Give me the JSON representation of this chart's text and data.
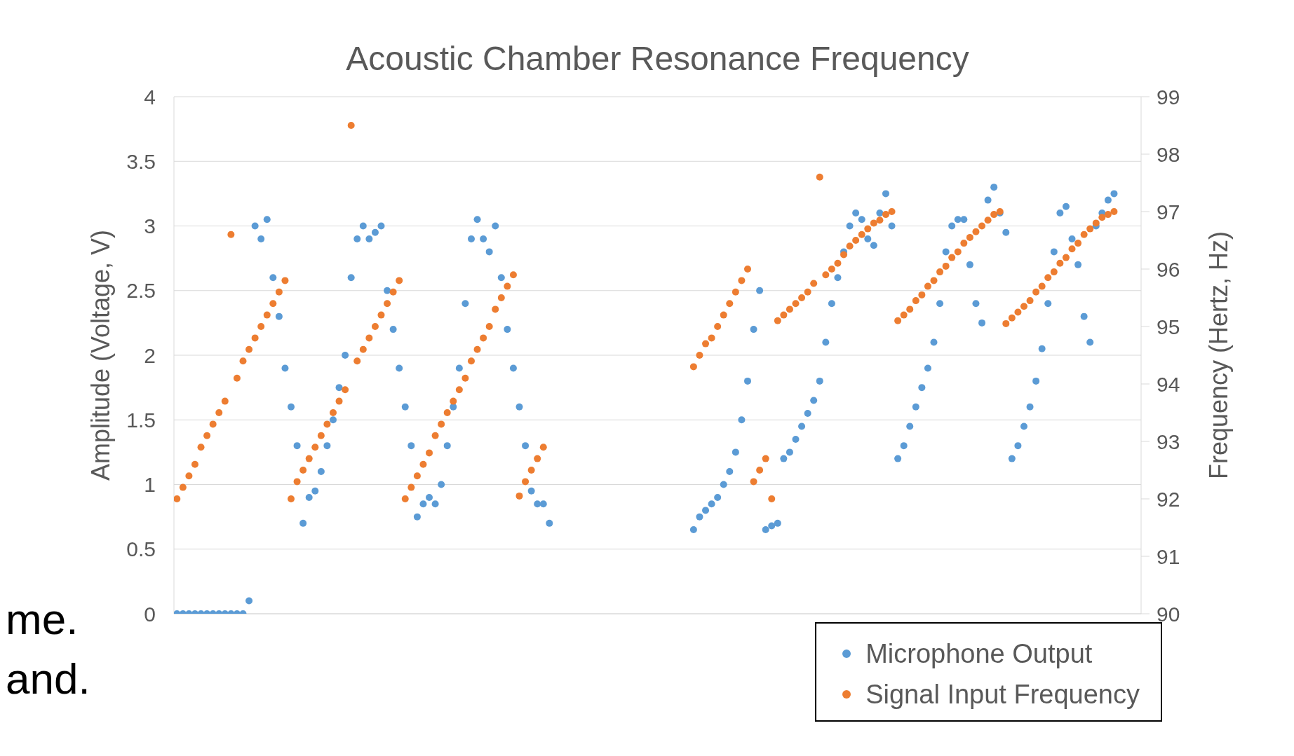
{
  "chart_data": {
    "type": "scatter",
    "title": "Acoustic Chamber Resonance Frequency",
    "ylabel": "Amplitude (Voltage, V)",
    "y2label": "Frequency (Hertz, Hz)",
    "categories": [
      null,
      null,
      null,
      null,
      null,
      null,
      null,
      null,
      null,
      null,
      null,
      null,
      null,
      null,
      null,
      null,
      null,
      null,
      null,
      null,
      null,
      null,
      null,
      null,
      null,
      null,
      null,
      null,
      null,
      null,
      null,
      null,
      null,
      null,
      null,
      null,
      null,
      null,
      null,
      null,
      null,
      null,
      null,
      null,
      null,
      null,
      null,
      null,
      null,
      null,
      null,
      null,
      null,
      null,
      null,
      null,
      null,
      null,
      null,
      null,
      null,
      null,
      null,
      null,
      null,
      null,
      null,
      null,
      null,
      null,
      null,
      null,
      null,
      null,
      null,
      null,
      null,
      null,
      null,
      null,
      null,
      null,
      null,
      null,
      null,
      null,
      null,
      null,
      null,
      null,
      null,
      null,
      null,
      null,
      null,
      null,
      null,
      null,
      null,
      null,
      null,
      null,
      null,
      null,
      null,
      null,
      null,
      null,
      null,
      null,
      null,
      null,
      null,
      null,
      null,
      null,
      null,
      null,
      null,
      null,
      null,
      null,
      null,
      null,
      null,
      null,
      null,
      null,
      null,
      null,
      null,
      null,
      null,
      null,
      null,
      null,
      null,
      null,
      null,
      null,
      null,
      null,
      null,
      null,
      null,
      null,
      null,
      null,
      null,
      null,
      null,
      null,
      null,
      null,
      null,
      null,
      null,
      null,
      null,
      null,
      null
    ],
    "series": [
      {
        "name": "Microphone Output",
        "color": "#5b9bd5",
        "values": [
          0,
          0,
          0,
          0,
          0,
          0,
          0,
          0,
          0,
          0,
          0,
          0,
          0.1,
          3.0,
          2.9,
          3.05,
          2.6,
          2.3,
          1.9,
          1.6,
          1.3,
          0.7,
          0.9,
          0.95,
          1.1,
          1.3,
          1.5,
          1.75,
          2.0,
          2.6,
          2.9,
          3.0,
          2.9,
          2.95,
          3.0,
          2.5,
          2.2,
          1.9,
          1.6,
          1.3,
          0.75,
          0.85,
          0.9,
          0.85,
          1.0,
          1.3,
          1.6,
          1.9,
          2.4,
          2.9,
          3.05,
          2.9,
          2.8,
          3.0,
          2.6,
          2.2,
          1.9,
          1.6,
          1.3,
          0.95,
          0.85,
          0.85,
          0.7,
          null,
          null,
          null,
          null,
          null,
          null,
          null,
          null,
          null,
          null,
          null,
          null,
          null,
          null,
          null,
          null,
          null,
          null,
          null,
          null,
          null,
          null,
          null,
          0.65,
          0.75,
          0.8,
          0.85,
          0.9,
          1.0,
          1.1,
          1.25,
          1.5,
          1.8,
          2.2,
          2.5,
          0.65,
          0.68,
          0.7,
          1.2,
          1.25,
          1.35,
          1.45,
          1.55,
          1.65,
          1.8,
          2.1,
          2.4,
          2.6,
          2.8,
          3.0,
          3.1,
          3.05,
          2.9,
          2.85,
          3.1,
          3.25,
          3.0,
          1.2,
          1.3,
          1.45,
          1.6,
          1.75,
          1.9,
          2.1,
          2.4,
          2.8,
          3.0,
          3.05,
          3.05,
          2.7,
          2.4,
          2.25,
          3.2,
          3.3,
          3.1,
          2.95,
          1.2,
          1.3,
          1.45,
          1.6,
          1.8,
          2.05,
          2.4,
          2.8,
          3.1,
          3.15,
          2.9,
          2.7,
          2.3,
          2.1,
          3.0,
          3.1,
          3.2,
          3.25,
          null,
          null,
          null,
          null
        ]
      },
      {
        "name": "Signal Input Frequency",
        "color": "#ed7d31",
        "axis": "y2",
        "values": [
          92.0,
          92.2,
          92.4,
          92.6,
          92.9,
          93.1,
          93.3,
          93.5,
          93.7,
          96.6,
          94.1,
          94.4,
          94.6,
          94.8,
          95.0,
          95.2,
          95.4,
          95.6,
          95.8,
          92.0,
          92.3,
          92.5,
          92.7,
          92.9,
          93.1,
          93.3,
          93.5,
          93.7,
          93.9,
          98.5,
          94.4,
          94.6,
          94.8,
          95.0,
          95.2,
          95.4,
          95.6,
          95.8,
          92.0,
          92.2,
          92.4,
          92.6,
          92.8,
          93.1,
          93.3,
          93.5,
          93.7,
          93.9,
          94.1,
          94.4,
          94.6,
          94.8,
          95.0,
          95.3,
          95.5,
          95.7,
          95.9,
          92.05,
          92.3,
          92.5,
          92.7,
          92.9,
          null,
          null,
          null,
          null,
          null,
          null,
          null,
          null,
          null,
          null,
          null,
          null,
          null,
          null,
          null,
          null,
          null,
          null,
          null,
          null,
          null,
          null,
          null,
          null,
          94.3,
          94.5,
          94.7,
          94.8,
          95.0,
          95.2,
          95.4,
          95.6,
          95.8,
          96.0,
          92.3,
          92.5,
          92.7,
          92.0,
          95.1,
          95.2,
          95.3,
          95.4,
          95.5,
          95.6,
          95.75,
          97.6,
          95.9,
          96.0,
          96.1,
          96.25,
          96.4,
          96.5,
          96.6,
          96.7,
          96.8,
          96.85,
          96.95,
          97.0,
          95.1,
          95.2,
          95.3,
          95.45,
          95.55,
          95.7,
          95.8,
          95.95,
          96.05,
          96.2,
          96.3,
          96.45,
          96.55,
          96.65,
          96.75,
          96.85,
          96.95,
          97.0,
          95.05,
          95.15,
          95.25,
          95.35,
          95.45,
          95.6,
          95.7,
          95.85,
          95.95,
          96.1,
          96.2,
          96.35,
          96.45,
          96.6,
          96.7,
          96.8,
          96.9,
          96.95,
          97.0,
          null,
          null,
          null,
          null
        ]
      }
    ],
    "ylim": [
      0,
      4
    ],
    "yticks": [
      0,
      0.5,
      1,
      1.5,
      2,
      2.5,
      3,
      3.5,
      4
    ],
    "y2lim": [
      90,
      99
    ],
    "y2ticks": [
      90,
      91,
      92,
      93,
      94,
      95,
      96,
      97,
      98,
      99
    ],
    "grid": "y",
    "legend": "bottom right",
    "marker": "circle",
    "annotations": [
      "me.",
      "and."
    ]
  }
}
